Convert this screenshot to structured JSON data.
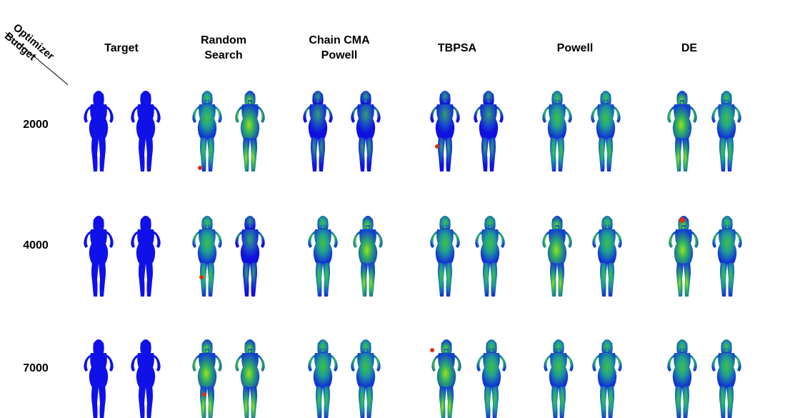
{
  "corner": {
    "optimizer_label": "Optimizer",
    "budget_label": "Budget"
  },
  "columns": [
    {
      "line1": "Target",
      "line2": ""
    },
    {
      "line1": "Random",
      "line2": "Search"
    },
    {
      "line1": "Chain CMA",
      "line2": "Powell"
    },
    {
      "line1": "TBPSA",
      "line2": ""
    },
    {
      "line1": "Powell",
      "line2": ""
    },
    {
      "line1": "DE",
      "line2": ""
    }
  ],
  "rows": [
    "2000",
    "4000",
    "7000"
  ],
  "colors": {
    "base": "#1010e8",
    "mid": "#20a060",
    "high": "#e0e020",
    "hot": "#e03010"
  }
}
